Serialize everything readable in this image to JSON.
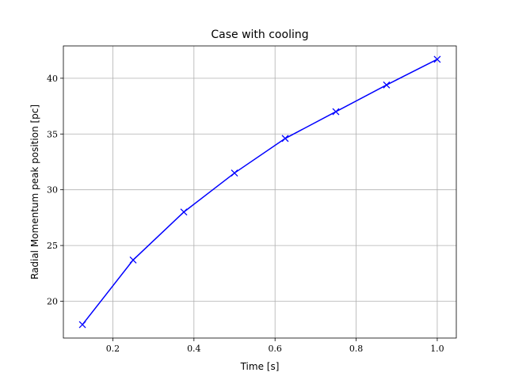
{
  "chart_data": {
    "type": "line",
    "title": "Case with cooling",
    "xlabel": "Time [s]",
    "ylabel": "Radial Momentum peak position [pc]",
    "xlim": [
      0.078,
      1.047
    ],
    "ylim": [
      16.7,
      42.9
    ],
    "xticks": [
      "0.2",
      "0.4",
      "0.6",
      "0.8",
      "1.0"
    ],
    "yticks": [
      "20",
      "25",
      "30",
      "35",
      "40"
    ],
    "grid": true,
    "color": "#0000ff",
    "marker": "x",
    "series": [
      {
        "x": [
          0.125,
          0.25,
          0.375,
          0.5,
          0.625,
          0.75,
          0.875,
          1.0
        ],
        "y": [
          17.9,
          23.7,
          28.0,
          31.5,
          34.6,
          37.0,
          39.4,
          41.7
        ]
      }
    ]
  }
}
